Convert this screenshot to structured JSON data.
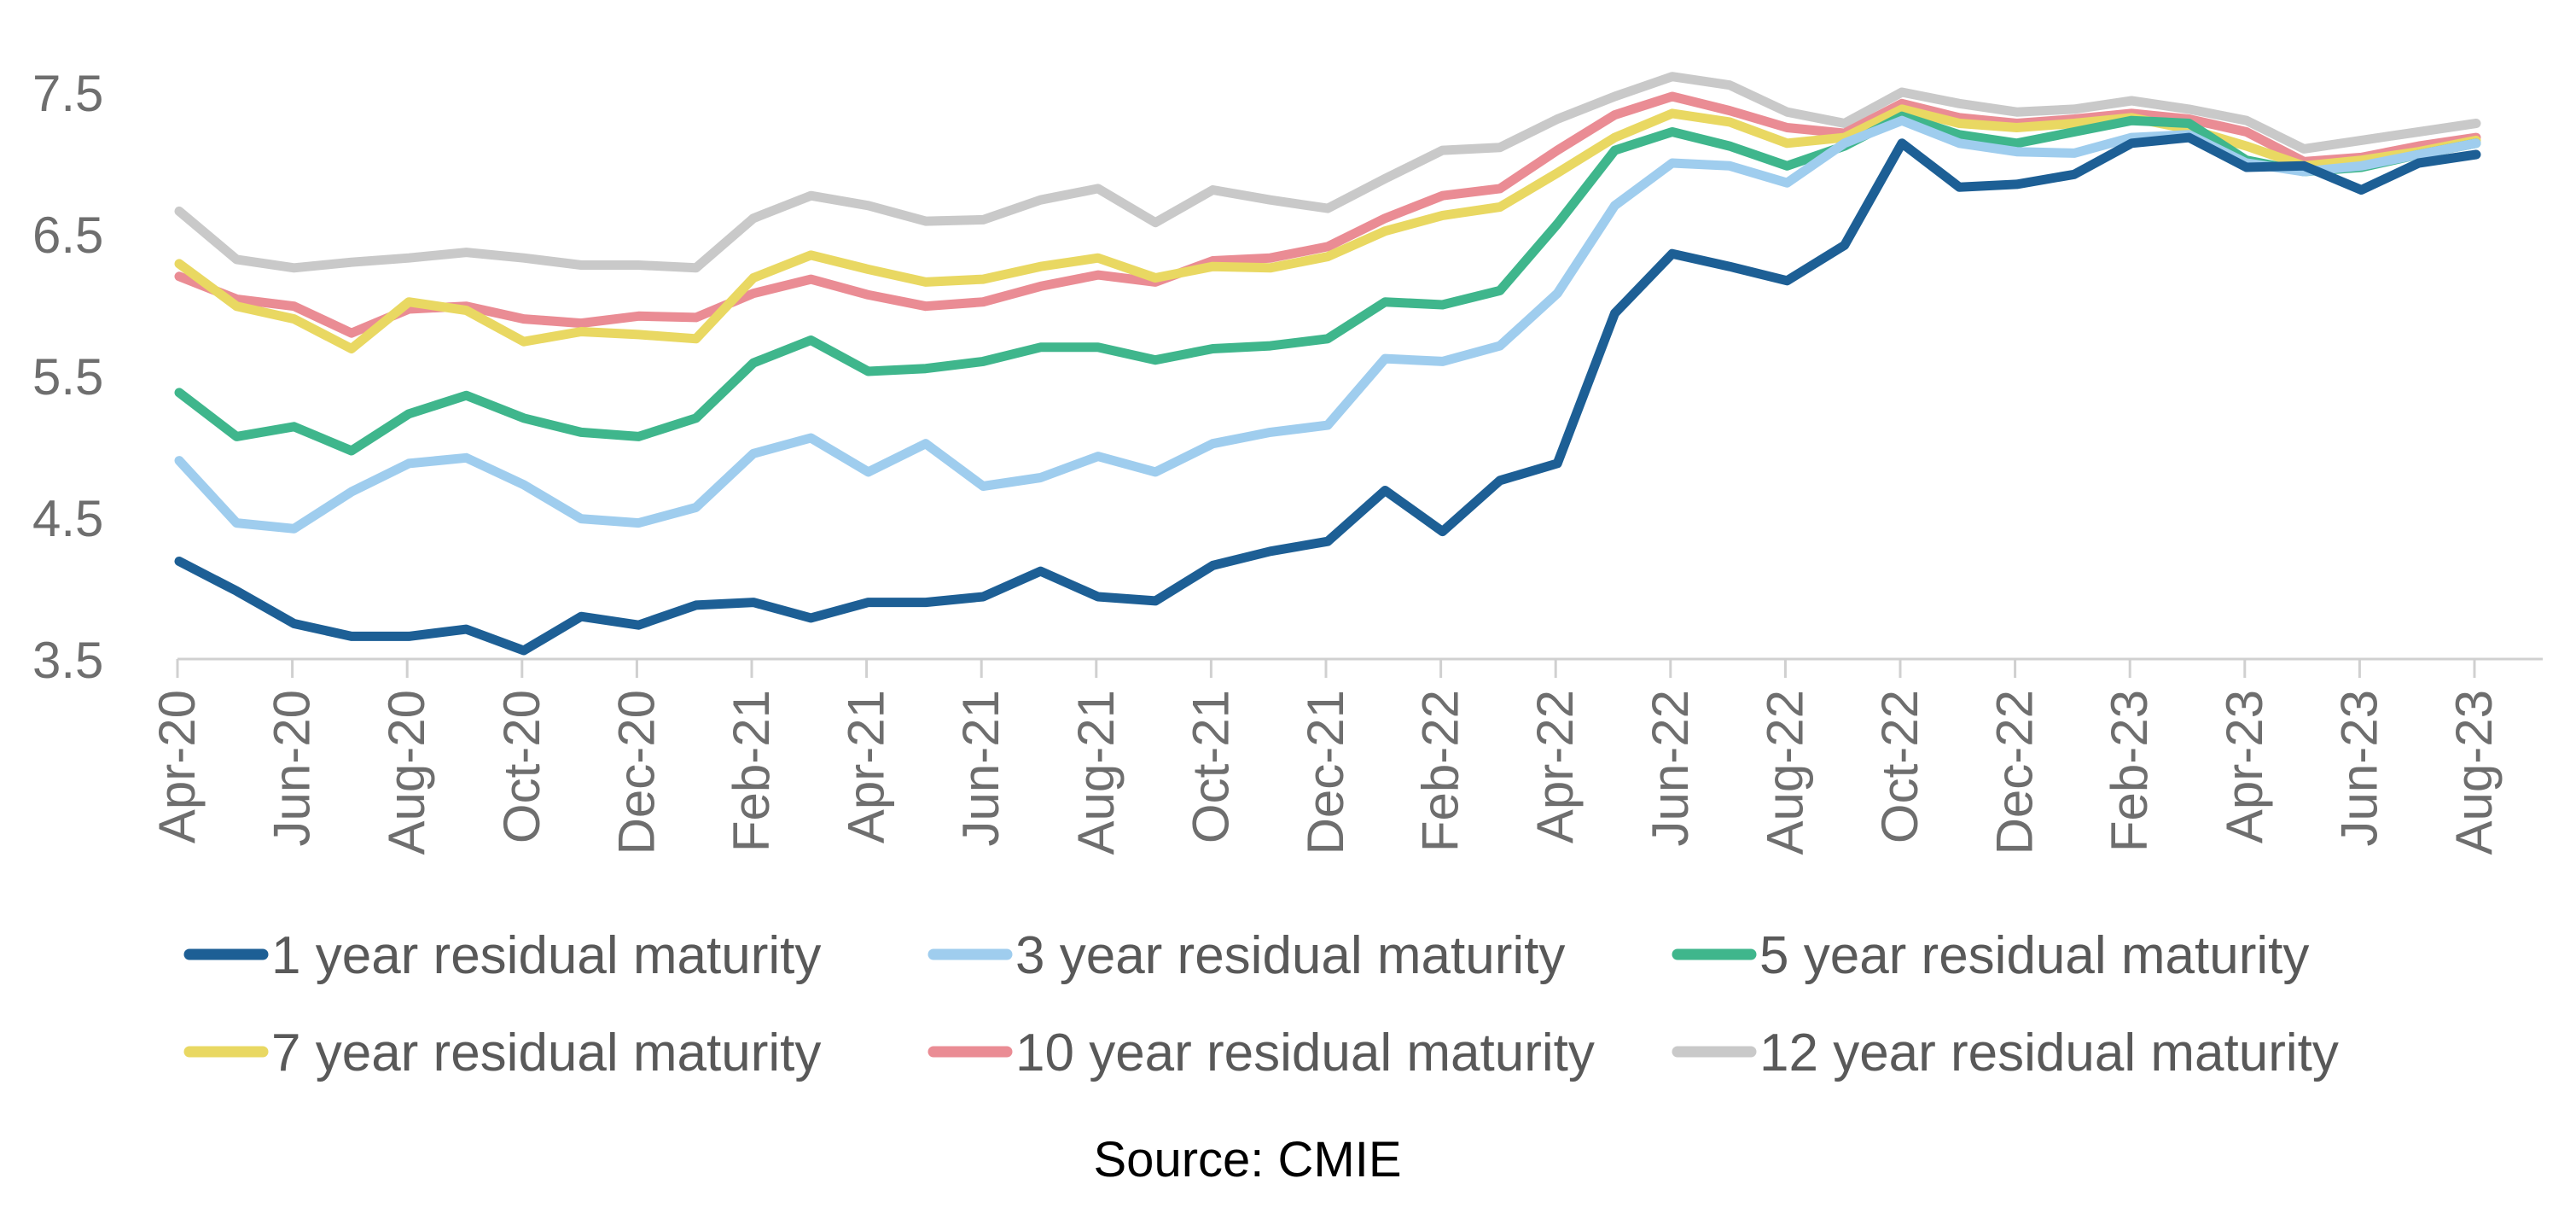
{
  "chart_data": {
    "type": "line",
    "title": "",
    "xlabel": "",
    "ylabel": "",
    "ylim": [
      3.5,
      7.5
    ],
    "yticks": [
      "7.5",
      "6.5",
      "5.5",
      "4.5",
      "3.5"
    ],
    "grid": false,
    "legend_position": "bottom",
    "x": [
      "Apr-20",
      "May-20",
      "Jun-20",
      "Jul-20",
      "Aug-20",
      "Sep-20",
      "Oct-20",
      "Nov-20",
      "Dec-20",
      "Jan-21",
      "Feb-21",
      "Mar-21",
      "Apr-21",
      "May-21",
      "Jun-21",
      "Jul-21",
      "Aug-21",
      "Sep-21",
      "Oct-21",
      "Nov-21",
      "Dec-21",
      "Jan-22",
      "Feb-22",
      "Mar-22",
      "Apr-22",
      "May-22",
      "Jun-22",
      "Jul-22",
      "Aug-22",
      "Sep-22",
      "Oct-22",
      "Nov-22",
      "Dec-22",
      "Jan-23",
      "Feb-23",
      "Mar-23",
      "Apr-23",
      "May-23",
      "Jun-23",
      "Jul-23",
      "Aug-23"
    ],
    "x_tick_labels": [
      "Apr-20",
      "Jun-20",
      "Aug-20",
      "Oct-20",
      "Dec-20",
      "Feb-21",
      "Apr-21",
      "Jun-21",
      "Aug-21",
      "Oct-21",
      "Dec-21",
      "Feb-22",
      "Apr-22",
      "Jun-22",
      "Aug-22",
      "Oct-22",
      "Dec-22",
      "Feb-23",
      "Apr-23",
      "Jun-23",
      "Aug-23"
    ],
    "series": [
      {
        "name": "12 year residual maturity",
        "color": "#c9c9c9",
        "values": [
          6.66,
          6.32,
          6.26,
          6.3,
          6.33,
          6.37,
          6.33,
          6.28,
          6.28,
          6.26,
          6.61,
          6.77,
          6.7,
          6.59,
          6.6,
          6.74,
          6.82,
          6.58,
          6.81,
          6.74,
          6.68,
          6.89,
          7.09,
          7.11,
          7.31,
          7.47,
          7.61,
          7.55,
          7.36,
          7.28,
          7.5,
          7.42,
          7.36,
          7.38,
          7.44,
          7.38,
          7.3,
          7.1,
          7.16,
          7.22,
          7.28
        ]
      },
      {
        "name": "10 year residual maturity",
        "color": "#ea8c94",
        "values": [
          6.2,
          6.04,
          5.99,
          5.8,
          5.97,
          5.99,
          5.9,
          5.87,
          5.92,
          5.91,
          6.08,
          6.18,
          6.07,
          5.99,
          6.02,
          6.13,
          6.21,
          6.16,
          6.31,
          6.33,
          6.41,
          6.61,
          6.77,
          6.82,
          7.09,
          7.34,
          7.47,
          7.37,
          7.25,
          7.21,
          7.42,
          7.32,
          7.28,
          7.31,
          7.35,
          7.31,
          7.22,
          7.01,
          7.04,
          7.12,
          7.18
        ]
      },
      {
        "name": "7 year residual maturity",
        "color": "#e9d862",
        "values": [
          6.29,
          5.99,
          5.9,
          5.69,
          6.02,
          5.96,
          5.74,
          5.81,
          5.79,
          5.76,
          6.19,
          6.35,
          6.25,
          6.16,
          6.18,
          6.27,
          6.33,
          6.19,
          6.27,
          6.26,
          6.34,
          6.52,
          6.63,
          6.69,
          6.93,
          7.18,
          7.35,
          7.29,
          7.14,
          7.18,
          7.38,
          7.28,
          7.25,
          7.28,
          7.32,
          7.24,
          7.12,
          6.98,
          7.02,
          7.08,
          7.16
        ]
      },
      {
        "name": "5 year residual maturity",
        "color": "#3fb68c",
        "values": [
          5.38,
          5.07,
          5.14,
          4.97,
          5.23,
          5.36,
          5.2,
          5.1,
          5.07,
          5.2,
          5.59,
          5.75,
          5.53,
          5.55,
          5.6,
          5.7,
          5.7,
          5.61,
          5.69,
          5.71,
          5.76,
          6.02,
          6,
          6.1,
          6.57,
          7.09,
          7.22,
          7.12,
          6.98,
          7.12,
          7.33,
          7.2,
          7.14,
          7.22,
          7.3,
          7.28,
          7.02,
          6.94,
          6.97,
          7.06,
          7.14
        ]
      },
      {
        "name": "3 year residual maturity",
        "color": "#9fcdee",
        "values": [
          4.9,
          4.46,
          4.42,
          4.68,
          4.88,
          4.92,
          4.73,
          4.49,
          4.46,
          4.57,
          4.95,
          5.06,
          4.82,
          5.02,
          4.72,
          4.78,
          4.93,
          4.82,
          5.02,
          5.1,
          5.15,
          5.62,
          5.6,
          5.71,
          6.08,
          6.7,
          7,
          6.98,
          6.86,
          7.14,
          7.3,
          7.14,
          7.08,
          7.07,
          7.18,
          7.2,
          7,
          6.94,
          6.98,
          7.06,
          7.14
        ]
      },
      {
        "name": "1 year residual maturity",
        "color": "#1d5f95",
        "values": [
          4.19,
          3.98,
          3.75,
          3.66,
          3.66,
          3.71,
          3.56,
          3.8,
          3.74,
          3.88,
          3.9,
          3.79,
          3.9,
          3.9,
          3.94,
          4.12,
          3.94,
          3.91,
          4.16,
          4.26,
          4.33,
          4.69,
          4.4,
          4.76,
          4.88,
          5.94,
          6.36,
          6.27,
          6.17,
          6.42,
          7.14,
          6.83,
          6.85,
          6.92,
          7.14,
          7.18,
          6.97,
          6.98,
          6.81,
          7,
          7.06
        ]
      }
    ],
    "legend_order": [
      "1 year residual maturity",
      "3 year residual maturity",
      "5 year residual maturity",
      "7 year residual maturity",
      "10 year residual maturity",
      "12 year residual maturity"
    ]
  },
  "source_text": "Source: CMIE"
}
